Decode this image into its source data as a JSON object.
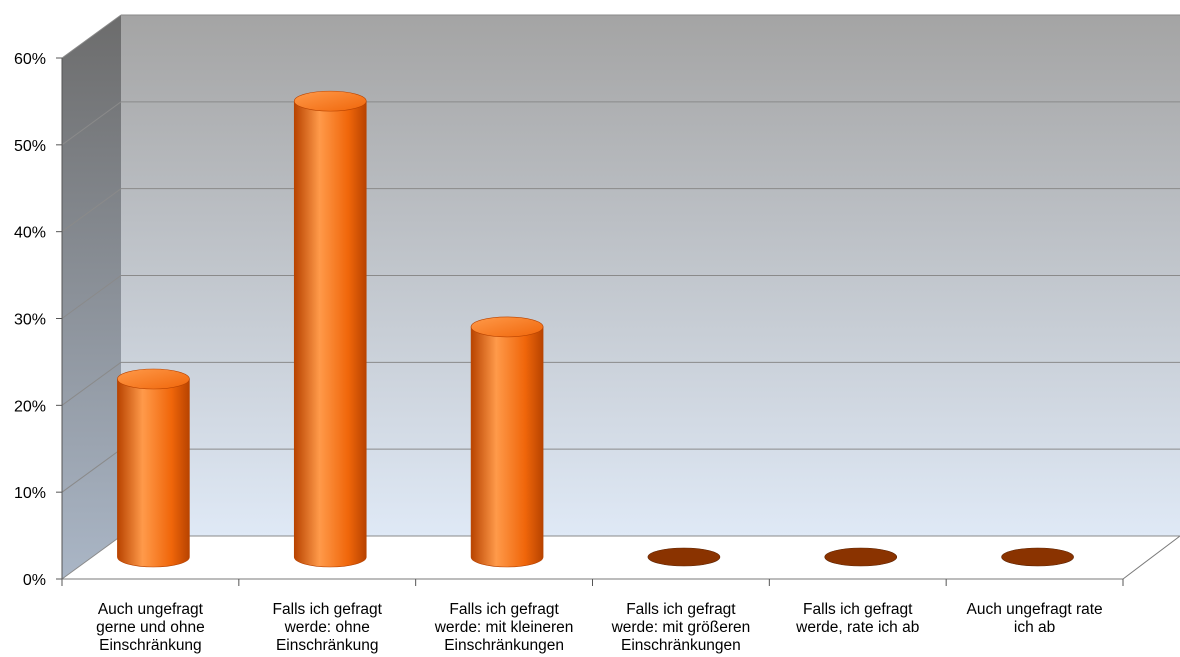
{
  "chart_data": {
    "type": "bar",
    "style": "3d-cylinder",
    "categories": [
      [
        "Auch ungefragt",
        "gerne und ohne",
        "Einschränkung"
      ],
      [
        "Falls ich gefragt",
        "werde: ohne",
        "Einschränkung"
      ],
      [
        "Falls ich gefragt",
        "werde: mit kleineren",
        "Einschränkungen"
      ],
      [
        "Falls ich gefragt",
        "werde: mit größeren",
        "Einschränkungen"
      ],
      [
        "Falls ich gefragt",
        "werde, rate ich ab"
      ],
      [
        "Auch ungefragt rate",
        "ich ab"
      ]
    ],
    "values": [
      20.5,
      52.5,
      26.5,
      0,
      0,
      0
    ],
    "ylim": [
      0,
      60
    ],
    "yticks": [
      "0%",
      "10%",
      "20%",
      "30%",
      "40%",
      "50%",
      "60%"
    ],
    "title": "",
    "xlabel": "",
    "ylabel": "",
    "grid": true,
    "legend": "none",
    "colors": {
      "bar": "#f0660a",
      "bar_light": "#ff9a4a",
      "bar_dark": "#b84300",
      "bar_zero": "#8a3300",
      "back_wall_top": "#a4a4a4",
      "back_wall_bottom": "#dfe9f6",
      "side_wall_top": "#6c6c6c",
      "side_wall_bottom": "#aab6c6",
      "floor": "#ffffff",
      "grid": "#8a8a8a"
    }
  }
}
